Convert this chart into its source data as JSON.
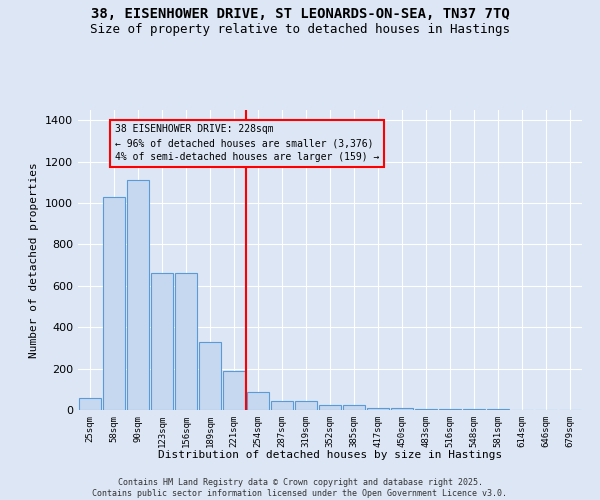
{
  "title": "38, EISENHOWER DRIVE, ST LEONARDS-ON-SEA, TN37 7TQ",
  "subtitle": "Size of property relative to detached houses in Hastings",
  "xlabel": "Distribution of detached houses by size in Hastings",
  "ylabel": "Number of detached properties",
  "categories": [
    "25sqm",
    "58sqm",
    "90sqm",
    "123sqm",
    "156sqm",
    "189sqm",
    "221sqm",
    "254sqm",
    "287sqm",
    "319sqm",
    "352sqm",
    "385sqm",
    "417sqm",
    "450sqm",
    "483sqm",
    "516sqm",
    "548sqm",
    "581sqm",
    "614sqm",
    "646sqm",
    "679sqm"
  ],
  "values": [
    60,
    1030,
    1110,
    660,
    660,
    330,
    190,
    85,
    45,
    45,
    22,
    22,
    12,
    12,
    6,
    6,
    3,
    3,
    1,
    1,
    0
  ],
  "bar_color": "#c5d8f0",
  "bar_edge_color": "#5b9bd5",
  "background_color": "#dce6f5",
  "grid_color": "#ffffff",
  "red_line_x": 6.5,
  "annotation_text": "38 EISENHOWER DRIVE: 228sqm\n← 96% of detached houses are smaller (3,376)\n4% of semi-detached houses are larger (159) →",
  "ylim": [
    0,
    1450
  ],
  "yticks": [
    0,
    200,
    400,
    600,
    800,
    1000,
    1200,
    1400
  ],
  "footer_line1": "Contains HM Land Registry data © Crown copyright and database right 2025.",
  "footer_line2": "Contains public sector information licensed under the Open Government Licence v3.0."
}
